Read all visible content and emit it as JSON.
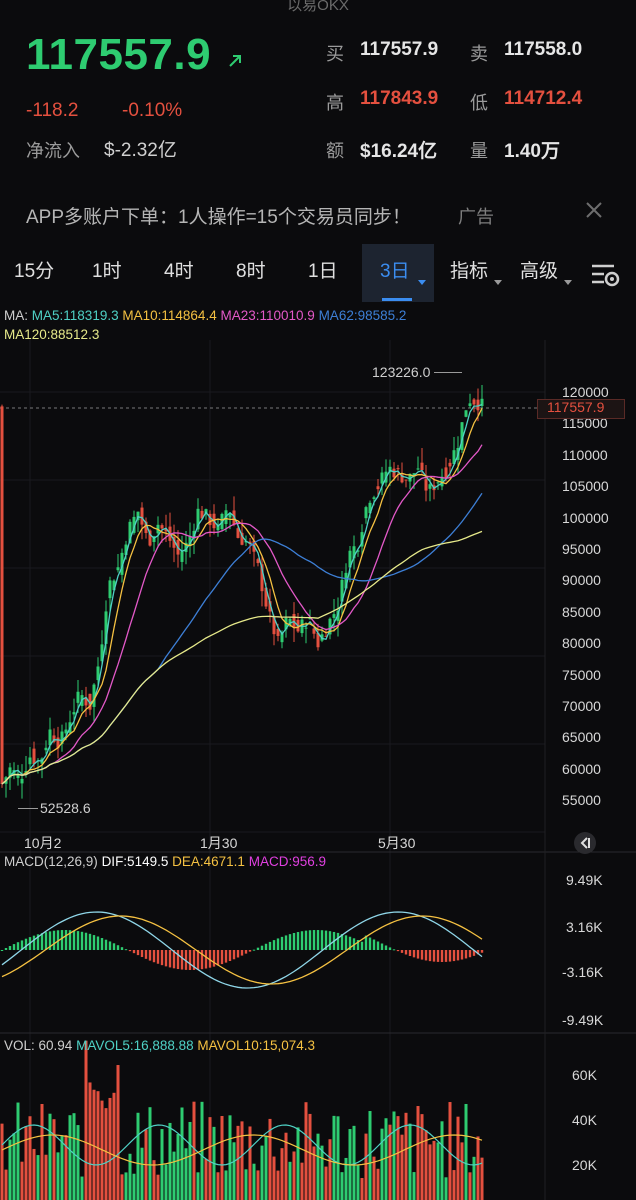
{
  "top_cut_text": "以易OKX",
  "ticker": {
    "last_price": "117557.9",
    "change": "-118.2",
    "change_pct": "-0.10%",
    "net_inflow_label": "净流入",
    "net_inflow_value": "$-2.32亿",
    "quote": {
      "buy_label": "买",
      "buy_value": "117557.9",
      "sell_label": "卖",
      "sell_value": "117558.0",
      "high_label": "高",
      "high_value": "117843.9",
      "low_label": "低",
      "low_value": "114712.4",
      "amount_label": "额",
      "amount_value": "$16.24亿",
      "volume_label": "量",
      "volume_value": "1.40万"
    }
  },
  "ad": {
    "text": "APP多账户下单：1人操作=15个交易员同步！",
    "tag": "广告"
  },
  "tabs": [
    {
      "label": "15分"
    },
    {
      "label": "1时"
    },
    {
      "label": "4时"
    },
    {
      "label": "8时"
    },
    {
      "label": "1日"
    },
    {
      "label": "3日",
      "active": true
    },
    {
      "label": "指标"
    },
    {
      "label": "高级"
    }
  ],
  "ma_legend": {
    "ma5": "MA5:118319.3",
    "ma10": "MA10:114864.4",
    "ma23": "MA23:110010.9",
    "ma62": "MA62:98585.2",
    "ma120": "MA120:88512.3",
    "prefix": "MA:"
  },
  "price_chart": {
    "high_marker": "123226.0",
    "low_marker": "52528.6",
    "current_price_tag": "117557.9",
    "y_ticks": [
      "120000",
      "115000",
      "110000",
      "105000",
      "100000",
      "95000",
      "90000",
      "85000",
      "80000",
      "75000",
      "70000",
      "65000",
      "60000",
      "55000"
    ],
    "x_ticks": [
      "10月2",
      "1月30",
      "5月30"
    ]
  },
  "macd": {
    "legend_prefix": "MACD(12,26,9)",
    "dif": "DIF:5149.5",
    "dea": "DEA:4671.1",
    "macd": "MACD:956.9",
    "y_ticks": [
      "9.49K",
      "3.16K",
      "-3.16K",
      "-9.49K"
    ]
  },
  "vol": {
    "vol": "VOL: 60.94",
    "mavol5": "MAVOL5:16,888.88",
    "mavol10": "MAVOL10:15,074.3",
    "y_ticks": [
      "60K",
      "40K",
      "20K"
    ]
  },
  "chart_data": {
    "type": "candlestick",
    "symbol_interval": "3日",
    "ylim": [
      52528.6,
      123226.0
    ],
    "current_price": 117557.9,
    "x_ticks": [
      "10月2",
      "1月30",
      "5月30"
    ],
    "series": [
      {
        "name": "MA5",
        "last": 118319.3
      },
      {
        "name": "MA10",
        "last": 114864.4
      },
      {
        "name": "MA23",
        "last": 110010.9
      },
      {
        "name": "MA62",
        "last": 98585.2
      },
      {
        "name": "MA120",
        "last": 88512.3
      }
    ],
    "macd": {
      "dif": 5149.5,
      "dea": 4671.1,
      "hist": 956.9
    },
    "volume": {
      "last": 60.94,
      "mavol5": 16888.88,
      "mavol10": 15074.3
    }
  },
  "colors": {
    "up": "#2ecc71",
    "down": "#e4503f",
    "ma5": "#4fd1c5",
    "ma10": "#f5c142",
    "ma23": "#e359c8",
    "ma62": "#3d7fd6",
    "ma120": "#e6e98a",
    "accent": "#3b8df0"
  },
  "icons": {
    "arrow": "arrow-up-right-icon",
    "close": "close-icon",
    "settings": "chart-settings-icon",
    "collapse": "collapse-arrow-icon"
  }
}
